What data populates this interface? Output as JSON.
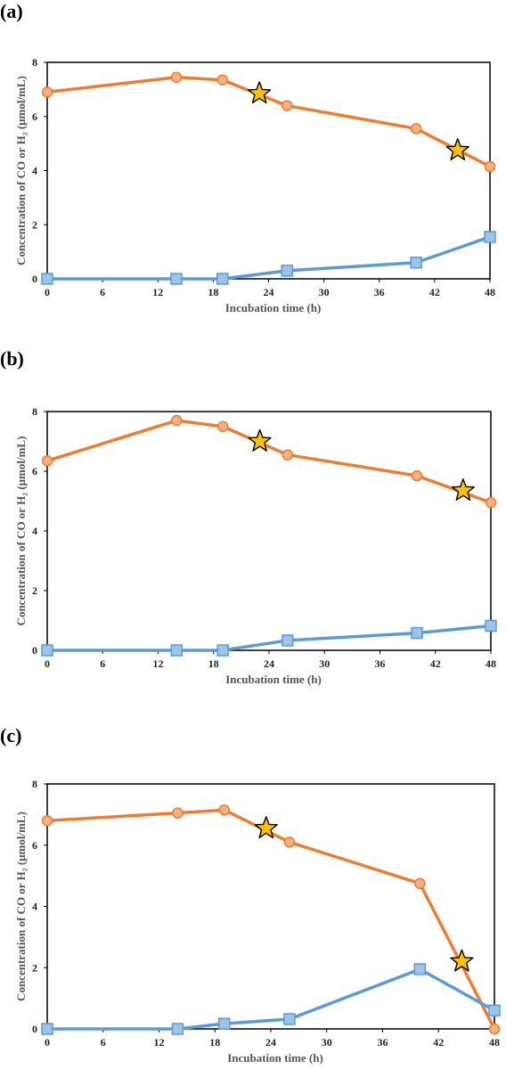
{
  "panels": [
    {
      "label": "(a)"
    },
    {
      "label": "(b)"
    },
    {
      "label": "(c)"
    }
  ],
  "colors": {
    "co_series": "#ed7d31",
    "co_fill": "#f4b183",
    "h2_series": "#5b9bd5",
    "h2_fill": "#9dc3e6",
    "star_fill": "#ffc000",
    "star_stroke": "#000000"
  },
  "chart_data": [
    {
      "type": "line",
      "xlabel": "Incubation time (h)",
      "ylabel": "Concentration of CO or H₂ (μmol/mL)",
      "xlim": [
        0,
        48
      ],
      "ylim": [
        0,
        8
      ],
      "xticks": [
        0,
        6,
        12,
        18,
        24,
        30,
        36,
        42,
        48
      ],
      "yticks": [
        0,
        2,
        4,
        6,
        8
      ],
      "grid": false,
      "series": [
        {
          "marker": "circle",
          "x": [
            0,
            14,
            19,
            26,
            40,
            48
          ],
          "y": [
            6.9,
            7.45,
            7.35,
            6.4,
            5.55,
            4.15
          ]
        },
        {
          "marker": "square",
          "x": [
            0,
            14,
            19,
            26,
            40,
            48
          ],
          "y": [
            0,
            0,
            0,
            0.3,
            0.6,
            1.55
          ]
        }
      ],
      "annotations": [
        {
          "marker": "star",
          "x": 23,
          "y": 6.85
        },
        {
          "marker": "star",
          "x": 44.5,
          "y": 4.75
        }
      ]
    },
    {
      "type": "line",
      "xlabel": "Incubation time (h)",
      "ylabel": "Concentration of CO or H₂ (μmol/mL)",
      "xlim": [
        0,
        48
      ],
      "ylim": [
        0,
        8
      ],
      "xticks": [
        0,
        6,
        12,
        18,
        24,
        30,
        36,
        42,
        48
      ],
      "yticks": [
        0,
        2,
        4,
        6,
        8
      ],
      "grid": false,
      "series": [
        {
          "marker": "circle",
          "x": [
            0,
            14,
            19,
            26,
            40,
            48
          ],
          "y": [
            6.35,
            7.7,
            7.5,
            6.55,
            5.85,
            4.95
          ]
        },
        {
          "marker": "square",
          "x": [
            0,
            14,
            19,
            26,
            40,
            48
          ],
          "y": [
            0,
            0,
            0,
            0.33,
            0.58,
            0.82
          ]
        }
      ],
      "annotations": [
        {
          "marker": "star",
          "x": 23,
          "y": 7.0
        },
        {
          "marker": "star",
          "x": 45,
          "y": 5.35
        }
      ]
    },
    {
      "type": "line",
      "xlabel": "Incubation time (h)",
      "ylabel": "Concentration of CO or H₂ (μmol/mL)",
      "xlim": [
        0,
        48
      ],
      "ylim": [
        0,
        8
      ],
      "xticks": [
        0,
        6,
        12,
        18,
        24,
        30,
        36,
        42,
        48
      ],
      "yticks": [
        0,
        2,
        4,
        6,
        8
      ],
      "grid": false,
      "series": [
        {
          "marker": "circle",
          "x": [
            0,
            14,
            19,
            26,
            40,
            48
          ],
          "y": [
            6.8,
            7.05,
            7.15,
            6.1,
            4.75,
            0
          ]
        },
        {
          "marker": "square",
          "x": [
            0,
            14,
            19,
            26,
            40,
            48
          ],
          "y": [
            0,
            0,
            0.17,
            0.32,
            1.95,
            0.6
          ]
        }
      ],
      "annotations": [
        {
          "marker": "star",
          "x": 23.5,
          "y": 6.55
        },
        {
          "marker": "star",
          "x": 44.5,
          "y": 2.2
        }
      ]
    }
  ]
}
